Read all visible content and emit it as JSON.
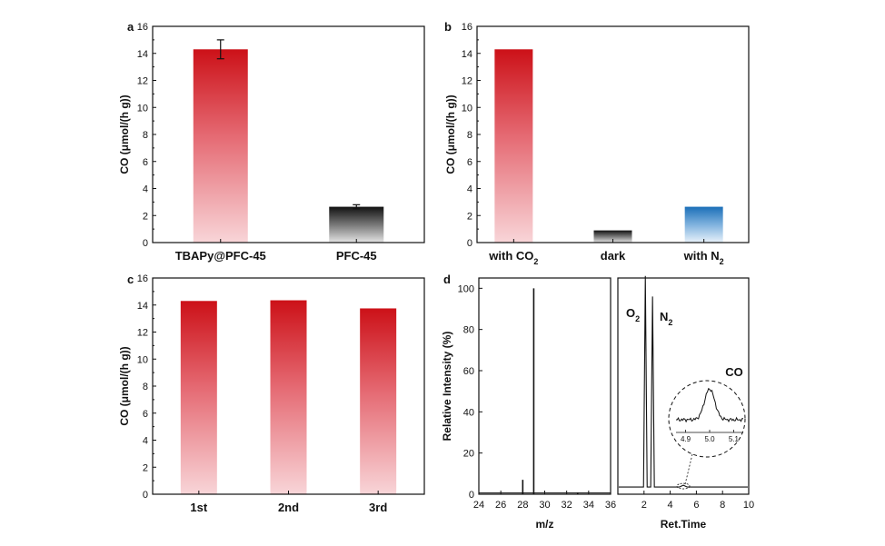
{
  "colors": {
    "red_top": "#cc1118",
    "red_bottom": "#f8d5d8",
    "black_top": "#111111",
    "black_bottom": "#e4e4e4",
    "blue_top": "#1b6fb8",
    "blue_bottom": "#e8f2fa",
    "axis": "#111111"
  },
  "chart_data": [
    {
      "panel": "a",
      "type": "bar",
      "categories": [
        "TBAPy@PFC-45",
        "PFC-45"
      ],
      "values": [
        14.3,
        2.65
      ],
      "errors": [
        0.7,
        0.15
      ],
      "fills": [
        "red",
        "black"
      ],
      "ylabel": "CO (μmol/(h g))",
      "ylim": [
        0,
        16
      ],
      "yticks": [
        "0",
        "2",
        "4",
        "6",
        "8",
        "10",
        "12",
        "14",
        "16"
      ]
    },
    {
      "panel": "b",
      "type": "bar",
      "categories": [
        "with CO",
        "dark",
        "with N"
      ],
      "subscripts": [
        "2",
        "",
        "2"
      ],
      "values": [
        14.3,
        0.9,
        2.65
      ],
      "fills": [
        "red",
        "black",
        "blue"
      ],
      "ylabel": "CO (μmol/(h g))",
      "ylim": [
        0,
        16
      ],
      "yticks": [
        "0",
        "2",
        "4",
        "6",
        "8",
        "10",
        "12",
        "14",
        "16"
      ]
    },
    {
      "panel": "c",
      "type": "bar",
      "categories": [
        "1st",
        "2nd",
        "3rd"
      ],
      "values": [
        14.3,
        14.35,
        13.75
      ],
      "fills": [
        "red",
        "red",
        "red"
      ],
      "ylabel": "CO (μmol/(h g))",
      "ylim": [
        0,
        16
      ],
      "yticks": [
        "0",
        "2",
        "4",
        "6",
        "8",
        "10",
        "12",
        "14",
        "16"
      ]
    },
    {
      "panel": "d",
      "type": "line",
      "ms": {
        "xlabel": "m/z",
        "ylabel": "Relative Intensity (%)",
        "xlim": [
          24,
          36
        ],
        "ylim": [
          0,
          105
        ],
        "xticks": [
          "24",
          "26",
          "28",
          "30",
          "32",
          "34",
          "36"
        ],
        "yticks": [
          "0",
          "20",
          "40",
          "60",
          "80",
          "100"
        ],
        "peaks": [
          {
            "x": 28,
            "y": 7
          },
          {
            "x": 29,
            "y": 100
          },
          {
            "x": 33,
            "y": 0.8
          }
        ]
      },
      "gc": {
        "xlabel": "Ret.Time",
        "xlim": [
          0,
          10
        ],
        "xticks": [
          "2",
          "4",
          "6",
          "8",
          "10"
        ],
        "peaks": [
          {
            "x": 2.1,
            "height": 106,
            "label": "O",
            "sub": "2"
          },
          {
            "x": 2.65,
            "height": 96,
            "label": "N",
            "sub": "2"
          },
          {
            "x": 5.0,
            "height": 1.5,
            "label": "CO",
            "sub": ""
          }
        ],
        "inset": {
          "label": "CO",
          "xlim": [
            4.86,
            5.14
          ],
          "xticks": [
            "4.9",
            "5.0",
            "5.1"
          ]
        }
      }
    }
  ],
  "panel_labels": [
    "a",
    "b",
    "c",
    "d"
  ]
}
